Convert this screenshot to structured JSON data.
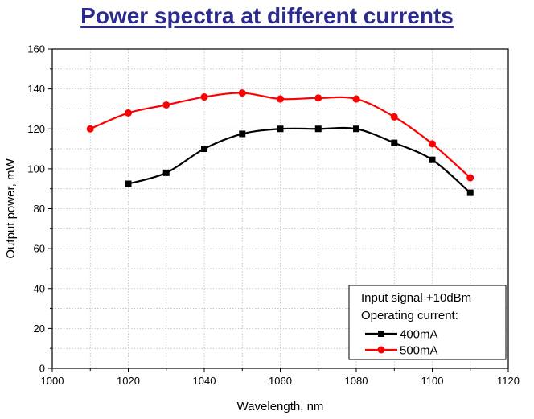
{
  "colors": {
    "title": "#2b2b8f",
    "series_400": "#000000",
    "series_500": "#ff0000"
  },
  "chart_data": {
    "type": "line",
    "title": "Power spectra at different currents",
    "xlabel": "Wavelength, nm",
    "ylabel": "Output power, mW",
    "xlim": [
      1000,
      1120
    ],
    "ylim": [
      0,
      160
    ],
    "xticks": [
      1000,
      1020,
      1040,
      1060,
      1080,
      1100,
      1120
    ],
    "yticks": [
      0,
      20,
      40,
      60,
      80,
      100,
      120,
      140,
      160
    ],
    "grid": true,
    "legend_position": "bottom-right",
    "legend_header": [
      "Input signal +10dBm",
      "Operating current:"
    ],
    "series": [
      {
        "name": "400mA",
        "marker": "square",
        "color": "#000000",
        "x": [
          1020,
          1030,
          1040,
          1050,
          1060,
          1070,
          1080,
          1090,
          1100,
          1110
        ],
        "y": [
          92.5,
          98,
          110,
          117.5,
          120,
          120,
          120,
          113,
          104.5,
          88
        ]
      },
      {
        "name": "500mA",
        "marker": "circle",
        "color": "#ff0000",
        "x": [
          1010,
          1020,
          1030,
          1040,
          1050,
          1060,
          1070,
          1080,
          1090,
          1100,
          1110
        ],
        "y": [
          120,
          128,
          132,
          136,
          138,
          135,
          135.5,
          135,
          126,
          112.5,
          95.5
        ]
      }
    ]
  }
}
